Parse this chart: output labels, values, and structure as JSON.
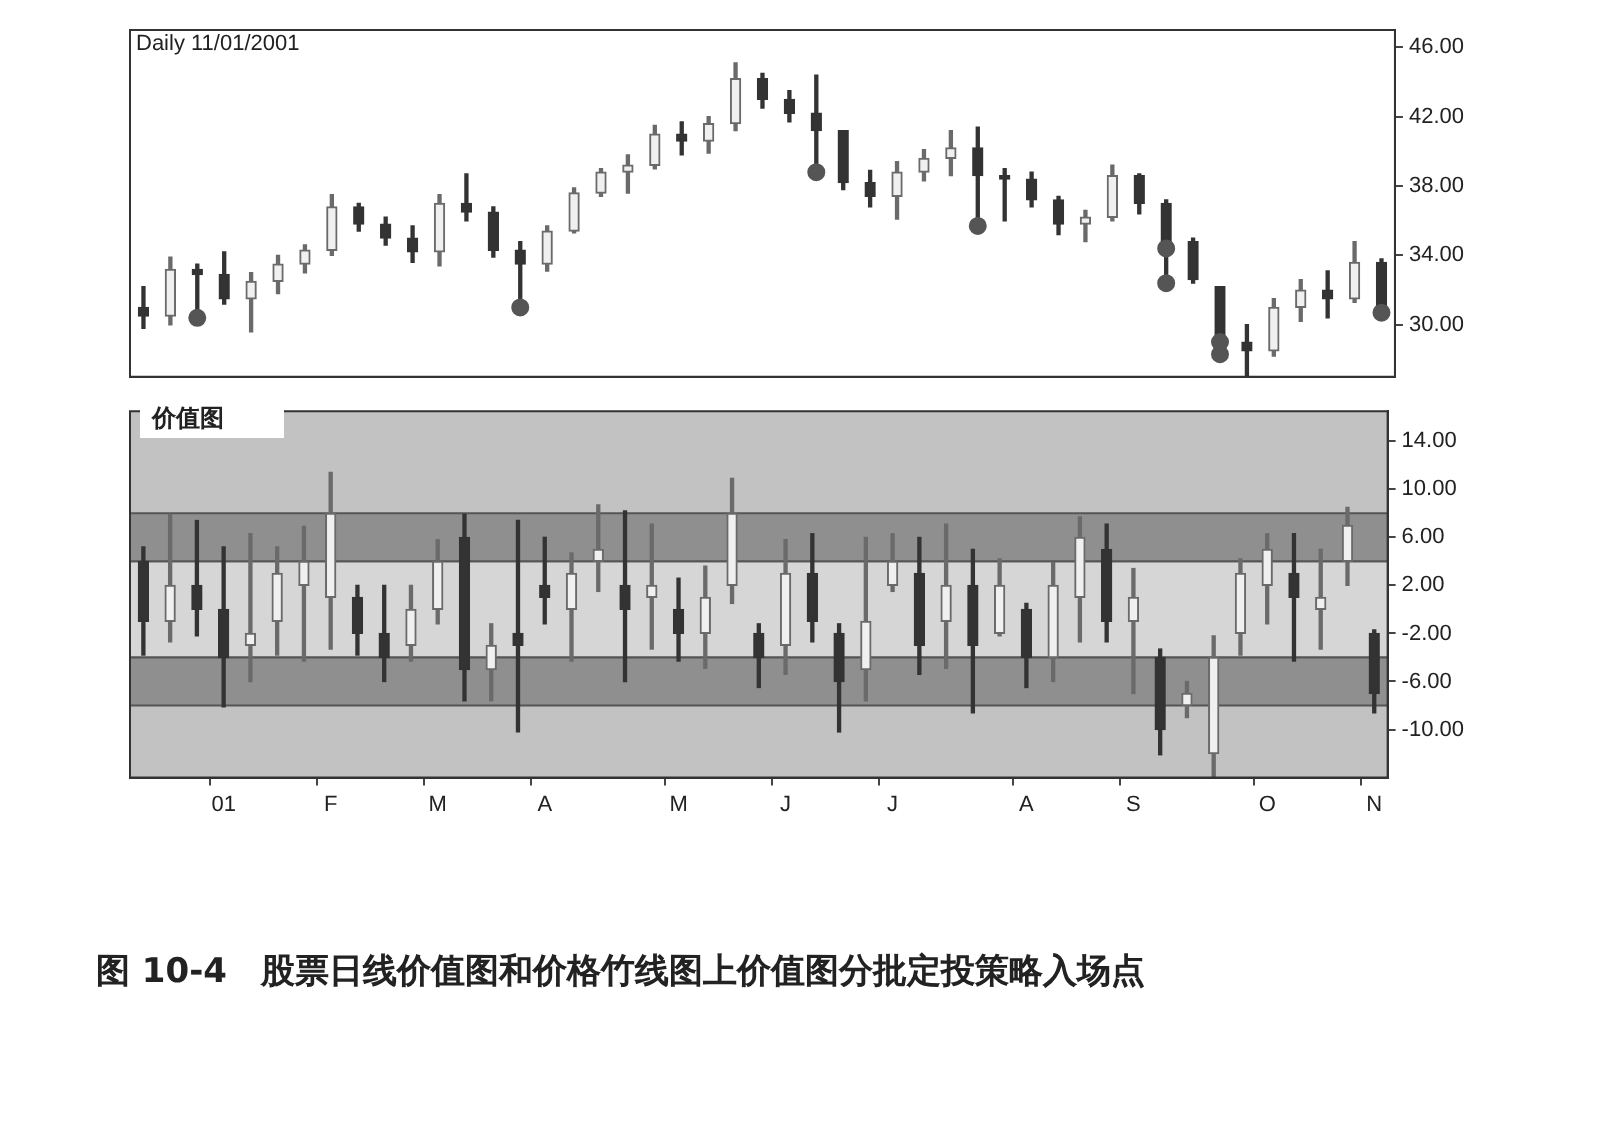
{
  "chart_data": [
    {
      "type": "candlestick",
      "title": "Daily 11/01/2001",
      "marker": "circle",
      "colors": [
        "#333333",
        "#6a6a6a",
        "#333333",
        "#333333",
        "#6a6a6a",
        "#6a6a6a",
        "#6a6a6a",
        "#6a6a6a",
        "#333333",
        "#333333",
        "#333333",
        "#6a6a6a",
        "#333333",
        "#333333",
        "#333333",
        "#6a6a6a",
        "#6a6a6a",
        "#6a6a6a",
        "#6a6a6a",
        "#6a6a6a",
        "#333333",
        "#6a6a6a",
        "#6a6a6a",
        "#333333",
        "#333333",
        "#333333",
        "#333333",
        "#333333",
        "#6a6a6a",
        "#6a6a6a",
        "#6a6a6a",
        "#333333",
        "#333333",
        "#333333",
        "#333333",
        "#6a6a6a",
        "#6a6a6a",
        "#333333",
        "#333333",
        "#333333",
        "#333333",
        "#333333",
        "#6a6a6a",
        "#6a6a6a",
        "#333333",
        "#6a6a6a",
        "#333333"
      ],
      "categories": [
        null,
        null,
        null,
        null,
        null,
        null,
        null,
        null,
        null,
        null,
        null,
        null,
        null,
        null,
        null,
        null,
        null,
        null,
        null,
        null,
        null,
        null,
        null,
        null,
        null,
        null,
        null,
        null,
        null,
        null,
        null,
        null,
        null,
        null,
        null,
        null,
        null,
        null,
        null,
        null,
        null,
        null,
        null,
        null,
        null,
        null,
        null
      ],
      "ohlc": [
        [
          31,
          32.2,
          29.8,
          30.5
        ],
        [
          30.5,
          33.9,
          30,
          33.2
        ],
        [
          33.2,
          33.5,
          30.4,
          32.9
        ],
        [
          32.9,
          34.2,
          31.2,
          31.5
        ],
        [
          31.5,
          33,
          29.6,
          32.5
        ],
        [
          32.5,
          34,
          31.8,
          33.5
        ],
        [
          33.5,
          34.6,
          33,
          34.3
        ],
        [
          34.3,
          37.5,
          34,
          36.8
        ],
        [
          36.8,
          37,
          35.4,
          35.8
        ],
        [
          35.8,
          36.2,
          34.6,
          35
        ],
        [
          35,
          35.7,
          33.6,
          34.2
        ],
        [
          34.2,
          37.5,
          33.4,
          37
        ],
        [
          37,
          38.7,
          36,
          36.5
        ],
        [
          36.5,
          36.8,
          33.9,
          34.3
        ],
        [
          34.3,
          34.8,
          31,
          33.5
        ],
        [
          33.5,
          35.7,
          33.1,
          35.4
        ],
        [
          35.4,
          37.9,
          35.3,
          37.6
        ],
        [
          37.6,
          39,
          37.4,
          38.8
        ],
        [
          38.8,
          39.8,
          37.6,
          39.2
        ],
        [
          39.2,
          41.5,
          39,
          41
        ],
        [
          41,
          41.7,
          39.8,
          40.6
        ],
        [
          40.6,
          42,
          39.9,
          41.6
        ],
        [
          41.6,
          45.1,
          41.2,
          44.2
        ],
        [
          44.2,
          44.5,
          42.5,
          43
        ],
        [
          43,
          43.5,
          41.7,
          42.2
        ],
        [
          42.2,
          44.4,
          38.8,
          41.2
        ],
        [
          41.2,
          41.2,
          37.8,
          38.2
        ],
        [
          38.2,
          38.9,
          36.8,
          37.4
        ],
        [
          37.4,
          39.4,
          36.1,
          38.8
        ],
        [
          38.8,
          40.1,
          38.3,
          39.6
        ],
        [
          39.6,
          41.2,
          38.6,
          40.2
        ],
        [
          40.2,
          41.4,
          35.7,
          38.6
        ],
        [
          38.6,
          39,
          36,
          38.4
        ],
        [
          38.4,
          38.8,
          36.8,
          37.2
        ],
        [
          37.2,
          37.4,
          35.2,
          35.8
        ],
        [
          35.8,
          36.6,
          34.8,
          36.2
        ],
        [
          36.2,
          39.2,
          36,
          38.6
        ],
        [
          38.6,
          38.7,
          36.4,
          37
        ],
        [
          37,
          37.2,
          32.4,
          34.8
        ],
        [
          34.8,
          35,
          32.4,
          32.6
        ],
        [
          32.2,
          32.2,
          28.3,
          29
        ],
        [
          29,
          30,
          27,
          28.5
        ],
        [
          28.5,
          31.5,
          28.2,
          31
        ],
        [
          31,
          32.6,
          30.2,
          32
        ],
        [
          32,
          33.1,
          30.4,
          31.5
        ],
        [
          31.5,
          34.8,
          31.3,
          33.6
        ],
        [
          33.6,
          33.8,
          30.7,
          31
        ]
      ],
      "series": [
        {
          "type": "scatter",
          "color": "#555555",
          "values": [
            null,
            null,
            30.4,
            null,
            null,
            null,
            null,
            null,
            null,
            null,
            null,
            null,
            null,
            null,
            31,
            null,
            null,
            null,
            null,
            null,
            null,
            null,
            null,
            null,
            null,
            38.8,
            null,
            null,
            null,
            null,
            null,
            35.7,
            null,
            null,
            null,
            null,
            null,
            null,
            34.4,
            null,
            29,
            null,
            null,
            null,
            null,
            null,
            30.7
          ]
        },
        {
          "type": "scatter",
          "color": "#555555",
          "values": [
            null,
            null,
            null,
            null,
            null,
            null,
            null,
            null,
            null,
            null,
            null,
            null,
            null,
            null,
            null,
            null,
            null,
            null,
            null,
            null,
            null,
            null,
            null,
            null,
            null,
            null,
            null,
            null,
            null,
            null,
            null,
            null,
            null,
            null,
            null,
            null,
            null,
            null,
            32.4,
            null,
            28.3,
            null,
            null,
            null,
            null,
            null,
            null
          ]
        }
      ],
      "ylim": [
        27,
        47
      ],
      "yticks": [
        {
          "value": 30,
          "label": "30.00"
        },
        {
          "value": 34,
          "label": "34.00"
        },
        {
          "value": 38,
          "label": "38.00"
        },
        {
          "value": 42,
          "label": "42.00"
        },
        {
          "value": 46,
          "label": "46.00"
        }
      ]
    },
    {
      "type": "candlestick",
      "title": "价值图",
      "colors": [
        "#333333",
        "#6a6a6a",
        "#333333",
        "#333333",
        "#6a6a6a",
        "#6a6a6a",
        "#6a6a6a",
        "#6a6a6a",
        "#333333",
        "#333333",
        "#6a6a6a",
        "#6a6a6a",
        "#333333",
        "#6a6a6a",
        "#333333",
        "#333333",
        "#6a6a6a",
        "#6a6a6a",
        "#333333",
        "#6a6a6a",
        "#333333",
        "#6a6a6a",
        "#6a6a6a",
        "#333333",
        "#6a6a6a",
        "#333333",
        "#333333",
        "#6a6a6a",
        "#6a6a6a",
        "#333333",
        "#6a6a6a",
        "#333333",
        "#6a6a6a",
        "#333333",
        "#6a6a6a",
        "#6a6a6a",
        "#333333",
        "#6a6a6a",
        "#333333",
        "#6a6a6a",
        "#6a6a6a",
        "#6a6a6a",
        "#6a6a6a",
        "#333333",
        "#6a6a6a",
        "#6a6a6a",
        "#333333"
      ],
      "categories": [
        null,
        null,
        null,
        "01",
        null,
        null,
        null,
        "F",
        null,
        null,
        null,
        "M",
        null,
        null,
        null,
        "A",
        null,
        null,
        null,
        null,
        "M",
        null,
        null,
        null,
        "J",
        null,
        null,
        null,
        "J",
        null,
        null,
        null,
        null,
        "A",
        null,
        null,
        null,
        "S",
        null,
        null,
        null,
        null,
        "O",
        null,
        null,
        null,
        "N"
      ],
      "ohlc": [
        [
          4,
          5.2,
          -3.8,
          -1
        ],
        [
          -1,
          7.9,
          -2.7,
          2
        ],
        [
          2,
          7.4,
          -2.2,
          0
        ],
        [
          0,
          5.2,
          -8.1,
          -4
        ],
        [
          -3,
          6.3,
          -6,
          -2
        ],
        [
          -1,
          5.2,
          -3.8,
          3
        ],
        [
          2,
          6.9,
          -4.3,
          4
        ],
        [
          1,
          11.4,
          -3.3,
          8
        ],
        [
          1,
          2,
          -3.8,
          -2
        ],
        [
          -2,
          2,
          -6,
          -4
        ],
        [
          -3,
          2,
          -4.3,
          0
        ],
        [
          0,
          5.8,
          -1.2,
          4
        ],
        [
          6,
          7.9,
          -7.6,
          -5
        ],
        [
          -5,
          -1.2,
          -7.6,
          -3
        ],
        [
          -2,
          7.4,
          -10.2,
          -3
        ],
        [
          2,
          6,
          -1.2,
          1
        ],
        [
          0,
          4.7,
          -4.3,
          3
        ],
        [
          4,
          8.7,
          1.5,
          5
        ],
        [
          2,
          8.2,
          -6,
          0
        ],
        [
          1,
          7.1,
          -3.3,
          2
        ],
        [
          0,
          2.6,
          -4.3,
          -2
        ],
        [
          -2,
          3.6,
          -4.9,
          1
        ],
        [
          2,
          10.9,
          0.5,
          8
        ],
        [
          -2,
          -1.2,
          -6.5,
          -4
        ],
        [
          -3,
          5.8,
          -5.4,
          3
        ],
        [
          3,
          6.3,
          -2.7,
          -1
        ],
        [
          -2,
          -1.2,
          -10.2,
          -6
        ],
        [
          -5,
          6,
          -7.6,
          -1
        ],
        [
          2,
          6.3,
          1.5,
          4
        ],
        [
          3,
          6,
          -5.4,
          -3
        ],
        [
          -1,
          7.1,
          -4.9,
          2
        ],
        [
          2,
          5,
          -8.6,
          -3
        ],
        [
          -2,
          4.2,
          -2.2,
          2
        ],
        [
          0,
          0.5,
          -6.5,
          -4
        ],
        [
          -4,
          3.9,
          -6,
          2
        ],
        [
          1,
          7.7,
          -2.7,
          6
        ],
        [
          5,
          7.1,
          -2.7,
          -1
        ],
        [
          -1,
          3.4,
          -7,
          1
        ],
        [
          -4,
          -3.3,
          -12.1,
          -10
        ],
        [
          -8,
          -6,
          -9,
          -7
        ],
        [
          -12,
          -2.2,
          -13.9,
          -4
        ],
        [
          -2,
          4.2,
          -3.8,
          3
        ],
        [
          2,
          6.3,
          -1.2,
          5
        ],
        [
          3,
          6.3,
          -4.3,
          1
        ],
        [
          0,
          5,
          -3.3,
          1
        ],
        [
          4,
          8.5,
          2,
          7
        ],
        [
          -2,
          -1.7,
          -8.6,
          -7
        ]
      ],
      "bands": [
        {
          "axis": "y",
          "from": -4,
          "to": 4,
          "color": "#d6d6d6"
        },
        {
          "axis": "y",
          "from": 4,
          "to": 8,
          "color": "#8f8f8f"
        },
        {
          "axis": "y",
          "from": -8,
          "to": -4,
          "color": "#8f8f8f"
        }
      ],
      "ylim": [
        -14,
        16.5
      ],
      "yticks": [
        {
          "value": 14,
          "label": "14.00"
        },
        {
          "value": 10,
          "label": "10.00"
        },
        {
          "value": 6,
          "label": "6.00"
        },
        {
          "value": 2,
          "label": "2.00"
        },
        {
          "value": -2,
          "label": "-2.00"
        },
        {
          "value": -6,
          "label": "-6.00"
        },
        {
          "value": -10,
          "label": "-10.00"
        }
      ],
      "annotations": [
        "图 10-4　股票日线价值图和价格竹线图上价值图分批定投策略入场点"
      ]
    }
  ]
}
